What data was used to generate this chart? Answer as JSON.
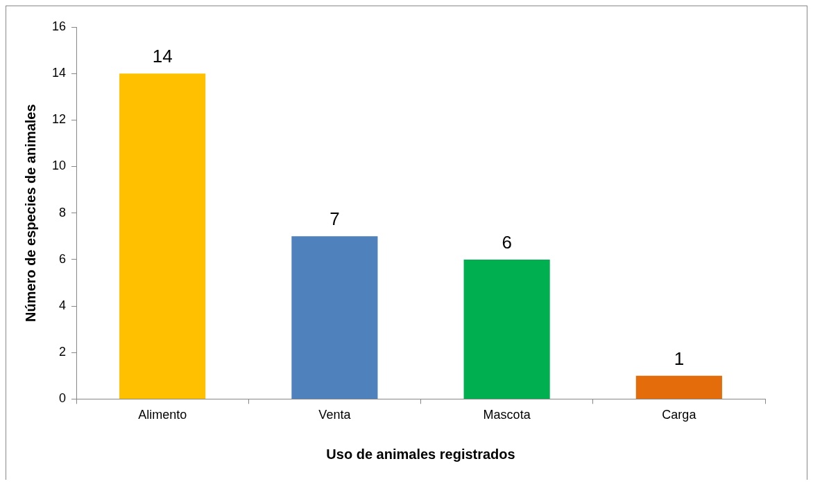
{
  "chart_data": {
    "type": "bar",
    "xlabel": "Uso de animales registrados",
    "ylabel": "Número de especies de animales",
    "categories": [
      "Alimento",
      "Venta",
      "Mascota",
      "Carga"
    ],
    "values": [
      14,
      7,
      6,
      1
    ],
    "colors": [
      "#ffc000",
      "#4f81bd",
      "#00b050",
      "#e46c0a"
    ],
    "ylim": [
      0,
      16
    ],
    "yticks": [
      0,
      2,
      4,
      6,
      8,
      10,
      12,
      14,
      16
    ],
    "grid": false,
    "data_labels": true
  }
}
